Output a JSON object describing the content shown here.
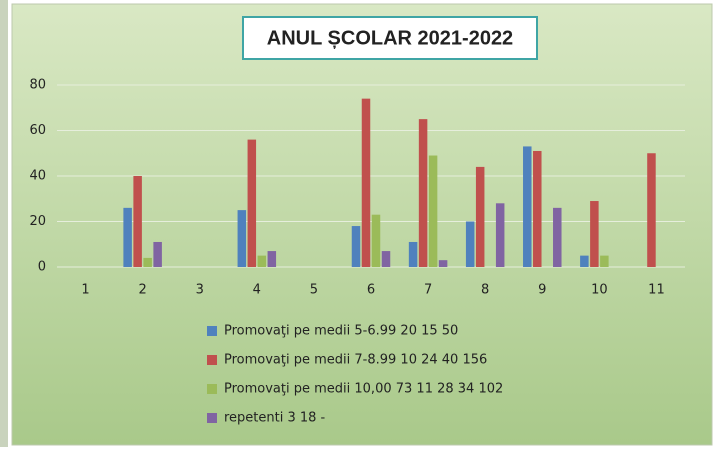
{
  "chart_data": {
    "type": "bar",
    "title": "ANUL ȘCOLAR 2021-2022",
    "categories": [
      "1",
      "2",
      "3",
      "4",
      "5",
      "6",
      "7",
      "8",
      "9",
      "10",
      "11"
    ],
    "series": [
      {
        "name": "Promovaţi pe medii 5-6.99 20 15 50",
        "color": "#4f81bd",
        "values": [
          null,
          26,
          null,
          25,
          null,
          18,
          11,
          20,
          53,
          5,
          null
        ]
      },
      {
        "name": "Promovaţi pe medii 7-8.99 10 24 40 156",
        "color": "#c0504d",
        "values": [
          null,
          40,
          null,
          56,
          null,
          74,
          65,
          44,
          51,
          29,
          50
        ]
      },
      {
        "name": "Promovaţi pe medii 10,00  73 11 28 34 102",
        "color": "#9bbb59",
        "values": [
          null,
          4,
          null,
          5,
          null,
          23,
          49,
          null,
          null,
          5,
          null
        ]
      },
      {
        "name": "repetenti 3 18 -",
        "color": "#8064a2",
        "values": [
          null,
          11,
          null,
          7,
          null,
          7,
          3,
          28,
          26,
          null,
          null
        ]
      }
    ],
    "ylim": [
      0,
      80
    ],
    "yticks": [
      0,
      20,
      40,
      60,
      80
    ],
    "grid": true,
    "legend": "bottom"
  }
}
